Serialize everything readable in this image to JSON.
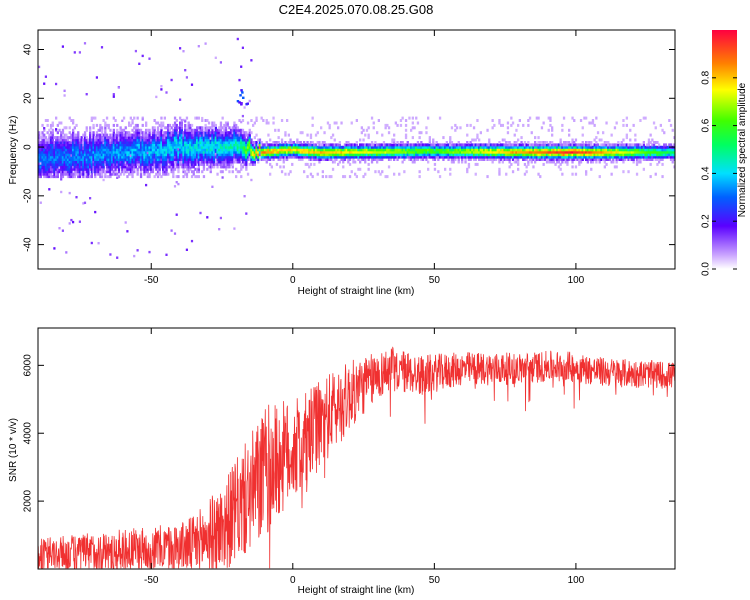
{
  "title": "C2E4.2025.070.08.25.G08",
  "chart_data": [
    {
      "type": "heatmap",
      "xlabel": "Height of straight line (km)",
      "ylabel": "Frequency (Hz)",
      "xlim": [
        -90,
        135
      ],
      "ylim": [
        -50,
        48
      ],
      "xticks": [
        -50,
        0,
        50,
        100
      ],
      "yticks": [
        -40,
        -20,
        0,
        20,
        40
      ],
      "grid": false,
      "colorbar": {
        "label": "Normalized spectral amplitude",
        "range": [
          0.0,
          1.0
        ],
        "ticks": [
          0.0,
          0.2,
          0.4,
          0.6,
          0.8
        ],
        "tick_labels": [
          "0.0",
          "0.2",
          "0.4",
          "0.6",
          "0.8"
        ]
      },
      "ridge": {
        "description_points": [
          {
            "x": -90,
            "y": -5,
            "spread": 7,
            "amp": 0.3
          },
          {
            "x": -60,
            "y": -2,
            "spread": 6,
            "amp": 0.35
          },
          {
            "x": -40,
            "y": 0,
            "spread": 6,
            "amp": 0.4
          },
          {
            "x": -20,
            "y": 1,
            "spread": 5,
            "amp": 0.45
          },
          {
            "x": -12,
            "y": -2,
            "spread": 2,
            "amp": 0.85
          },
          {
            "x": 0,
            "y": -1,
            "spread": 2,
            "amp": 0.75
          },
          {
            "x": 10,
            "y": -2,
            "spread": 2,
            "amp": 0.8
          },
          {
            "x": 50,
            "y": -1.5,
            "spread": 2,
            "amp": 0.6
          },
          {
            "x": 98,
            "y": -2,
            "spread": 2,
            "amp": 0.95
          },
          {
            "x": 135,
            "y": -2,
            "spread": 2,
            "amp": 0.5
          }
        ]
      }
    },
    {
      "type": "line",
      "xlabel": "Height of straight line (km)",
      "ylabel": "SNR (10 * v/v)",
      "xlim": [
        -90,
        135
      ],
      "ylim": [
        0,
        7100
      ],
      "xticks": [
        -50,
        0,
        50,
        100
      ],
      "yticks": [
        2000,
        4000,
        6000
      ],
      "grid": false,
      "color": "#f03030",
      "trend": {
        "x": [
          -90,
          -70,
          -50,
          -35,
          -25,
          -15,
          -8,
          0,
          5,
          10,
          20,
          30,
          35,
          45,
          60,
          80,
          95,
          110,
          135
        ],
        "y": [
          400,
          500,
          600,
          700,
          1200,
          2200,
          3000,
          3500,
          3800,
          4300,
          5100,
          5700,
          5900,
          5700,
          5900,
          5900,
          6000,
          5800,
          5700
        ]
      },
      "noise": {
        "x": [
          -90,
          -40,
          -25,
          -10,
          0,
          15,
          30,
          60,
          135
        ],
        "amplitude": [
          500,
          700,
          1300,
          2000,
          1500,
          1200,
          700,
          500,
          400
        ]
      }
    }
  ]
}
